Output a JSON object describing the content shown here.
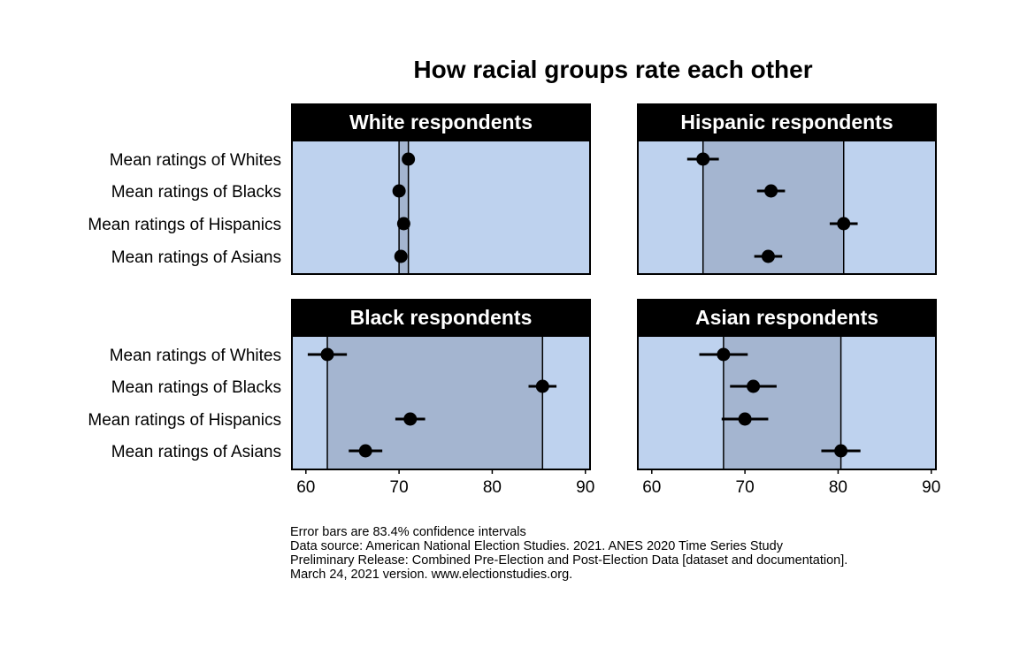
{
  "chart_data": {
    "type": "scatter",
    "title": "How racial groups rate each other",
    "x_ticks": [
      60,
      70,
      80,
      90
    ],
    "xlim": [
      58.5,
      90.5
    ],
    "row_labels": [
      "Mean ratings of Whites",
      "Mean ratings of Blacks",
      "Mean ratings of Hispanics",
      "Mean ratings of Asians"
    ],
    "panels": [
      {
        "name": "White respondents",
        "points": [
          {
            "label": "Mean ratings of Whites",
            "value": 71.0,
            "ci": [
              70.8,
              71.2
            ]
          },
          {
            "label": "Mean ratings of Blacks",
            "value": 70.0,
            "ci": [
              69.8,
              70.2
            ]
          },
          {
            "label": "Mean ratings of Hispanics",
            "value": 70.5,
            "ci": [
              70.3,
              70.7
            ]
          },
          {
            "label": "Mean ratings of Asians",
            "value": 70.2,
            "ci": [
              70.0,
              70.4
            ]
          }
        ],
        "range_lines": [
          70.0,
          71.0
        ]
      },
      {
        "name": "Hispanic respondents",
        "points": [
          {
            "label": "Mean ratings of Whites",
            "value": 65.5,
            "ci": [
              63.8,
              67.2
            ]
          },
          {
            "label": "Mean ratings of Blacks",
            "value": 72.8,
            "ci": [
              71.3,
              74.3
            ]
          },
          {
            "label": "Mean ratings of Hispanics",
            "value": 80.6,
            "ci": [
              79.1,
              82.1
            ]
          },
          {
            "label": "Mean ratings of Asians",
            "value": 72.5,
            "ci": [
              71.0,
              74.0
            ]
          }
        ],
        "range_lines": [
          65.5,
          80.6
        ]
      },
      {
        "name": "Black respondents",
        "points": [
          {
            "label": "Mean ratings of Whites",
            "value": 62.3,
            "ci": [
              60.2,
              64.4
            ]
          },
          {
            "label": "Mean ratings of Blacks",
            "value": 85.4,
            "ci": [
              83.9,
              86.9
            ]
          },
          {
            "label": "Mean ratings of Hispanics",
            "value": 71.2,
            "ci": [
              69.6,
              72.8
            ]
          },
          {
            "label": "Mean ratings of Asians",
            "value": 66.4,
            "ci": [
              64.6,
              68.2
            ]
          }
        ],
        "range_lines": [
          62.3,
          85.4
        ]
      },
      {
        "name": "Asian respondents",
        "points": [
          {
            "label": "Mean ratings of Whites",
            "value": 67.7,
            "ci": [
              65.1,
              70.3
            ]
          },
          {
            "label": "Mean ratings of Blacks",
            "value": 70.9,
            "ci": [
              68.4,
              73.4
            ]
          },
          {
            "label": "Mean ratings of Hispanics",
            "value": 70.0,
            "ci": [
              67.5,
              72.5
            ]
          },
          {
            "label": "Mean ratings of Asians",
            "value": 80.3,
            "ci": [
              78.2,
              82.4
            ]
          }
        ],
        "range_lines": [
          67.7,
          80.3
        ]
      }
    ]
  },
  "footnotes": [
    "Error bars are 83.4% confidence intervals",
    "Data source: American National Election Studies. 2021. ANES 2020 Time Series Study",
    "Preliminary Release: Combined Pre-Election and Post-Election Data [dataset and documentation].",
    "March 24, 2021 version. www.electionstudies.org."
  ],
  "colors": {
    "panel_bg": "#bed2ee",
    "shade": "#a4b5d0",
    "strip_bg": "#000000",
    "strip_text": "#ffffff",
    "point": "#000000"
  }
}
